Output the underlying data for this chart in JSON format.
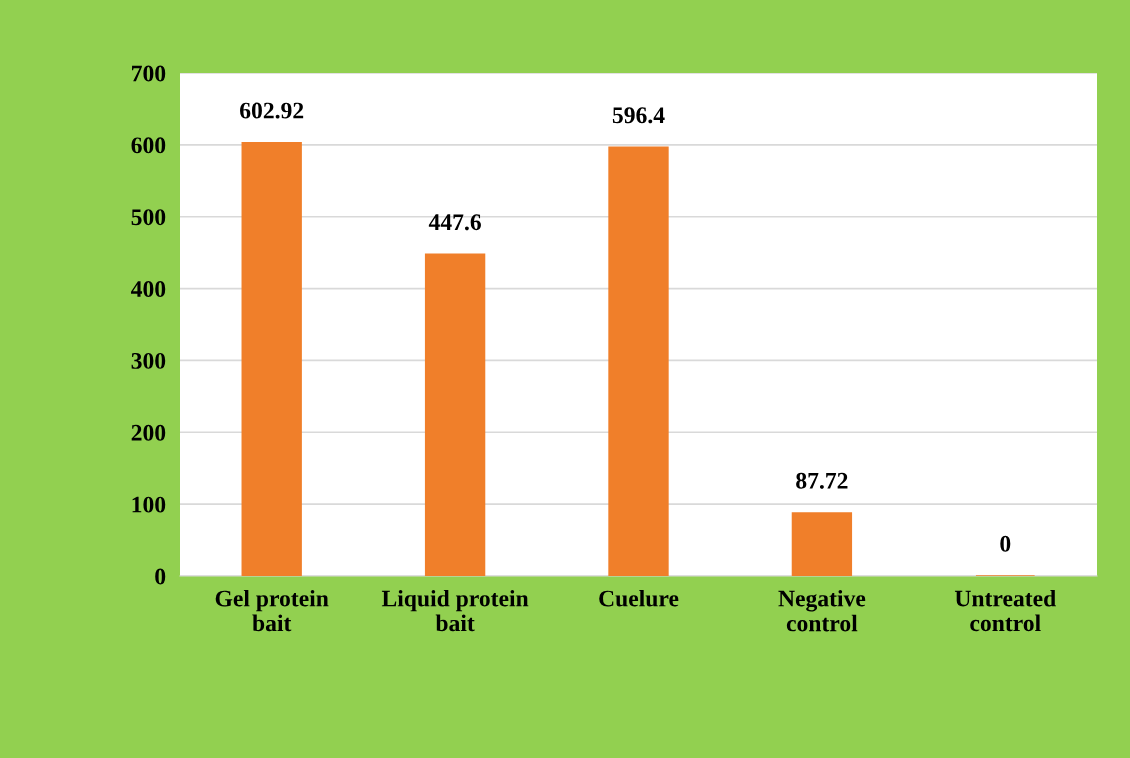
{
  "chart_data": {
    "type": "bar",
    "categories": [
      "Gel protein\nbait",
      "Liquid protein\nbait",
      "Cuelure",
      "Negative\ncontrol",
      "Untreated\ncontrol"
    ],
    "values": [
      602.92,
      447.6,
      596.4,
      87.72,
      0
    ],
    "color": "#f07f2a",
    "ylim": [
      0,
      700
    ],
    "yticks": [
      0,
      100,
      200,
      300,
      400,
      500,
      600,
      700
    ],
    "grid": "y",
    "data_labels": true
  }
}
